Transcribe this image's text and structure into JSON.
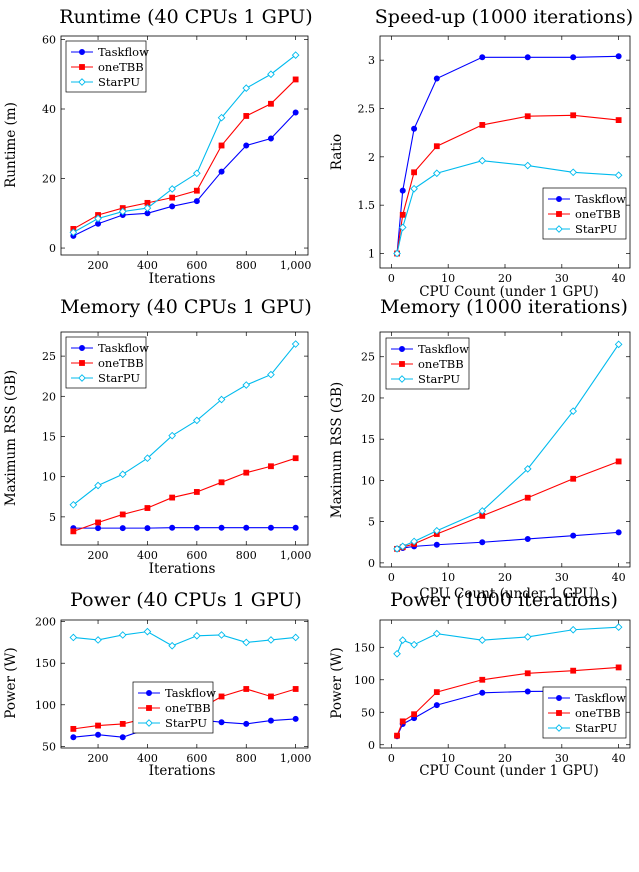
{
  "colors": {
    "taskflow": "#0000ff",
    "onetbb": "#ff0000",
    "starpu": "#00bbee"
  },
  "chart_data": [
    {
      "id": "runtime-iters",
      "type": "line",
      "title": "Runtime (40 CPUs 1 GPU)",
      "xlabel": "Iterations",
      "ylabel": "Runtime (m)",
      "xlim": [
        50,
        1050
      ],
      "ylim": [
        -2,
        61
      ],
      "xticks": [
        200,
        400,
        600,
        800,
        1000
      ],
      "xtick_labels": [
        "200",
        "400",
        "600",
        "800",
        "1,000"
      ],
      "yticks": [
        0,
        20,
        40,
        60
      ],
      "ytick_labels": [
        "0",
        "20",
        "40",
        "60"
      ],
      "legend": "top-left",
      "x": [
        100,
        200,
        300,
        400,
        500,
        600,
        700,
        800,
        900,
        1000
      ],
      "series": [
        {
          "name": "Taskflow",
          "values": [
            3.5,
            7,
            9.5,
            10,
            12,
            13.5,
            22,
            29.5,
            31.5,
            39
          ],
          "marker": "circle"
        },
        {
          "name": "oneTBB",
          "values": [
            5.5,
            9.5,
            11.5,
            13,
            14.5,
            16.5,
            29.5,
            38,
            41.5,
            48.5
          ],
          "marker": "square"
        },
        {
          "name": "StarPU",
          "values": [
            4.5,
            8.5,
            10.5,
            11.5,
            17,
            21.5,
            37.5,
            46,
            50,
            55.5
          ],
          "marker": "diamond"
        }
      ]
    },
    {
      "id": "speedup-cpus",
      "type": "line",
      "title": "Speed-up (1000 iterations)",
      "xlabel": "CPU Count (under 1 GPU)",
      "ylabel": "Ratio",
      "xlim": [
        -2,
        42
      ],
      "ylim": [
        0.85,
        3.25
      ],
      "xticks": [
        0,
        10,
        20,
        30,
        40
      ],
      "xtick_labels": [
        "0",
        "10",
        "20",
        "30",
        "40"
      ],
      "yticks": [
        1,
        1.5,
        2,
        2.5,
        3
      ],
      "ytick_labels": [
        "1",
        "1.5",
        "2",
        "2.5",
        "3"
      ],
      "legend": "bottom-right",
      "x": [
        1,
        2,
        4,
        8,
        16,
        24,
        32,
        40
      ],
      "series": [
        {
          "name": "Taskflow",
          "values": [
            1,
            1.65,
            2.29,
            2.81,
            3.03,
            3.03,
            3.03,
            3.04
          ],
          "marker": "circle"
        },
        {
          "name": "oneTBB",
          "values": [
            1,
            1.4,
            1.84,
            2.11,
            2.33,
            2.42,
            2.43,
            2.38
          ],
          "marker": "square"
        },
        {
          "name": "StarPU",
          "values": [
            1,
            1.27,
            1.67,
            1.83,
            1.96,
            1.91,
            1.84,
            1.81
          ],
          "marker": "diamond"
        }
      ]
    },
    {
      "id": "memory-iters",
      "type": "line",
      "title": "Memory (40 CPUs 1 GPU)",
      "xlabel": "Iterations",
      "ylabel": "Maximum RSS (GB)",
      "xlim": [
        50,
        1050
      ],
      "ylim": [
        1.5,
        28
      ],
      "xticks": [
        200,
        400,
        600,
        800,
        1000
      ],
      "xtick_labels": [
        "200",
        "400",
        "600",
        "800",
        "1,000"
      ],
      "yticks": [
        5,
        10,
        15,
        20,
        25
      ],
      "ytick_labels": [
        "5",
        "10",
        "15",
        "20",
        "25"
      ],
      "legend": "top-left",
      "x": [
        100,
        200,
        300,
        400,
        500,
        600,
        700,
        800,
        900,
        1000
      ],
      "series": [
        {
          "name": "Taskflow",
          "values": [
            3.6,
            3.6,
            3.6,
            3.6,
            3.65,
            3.65,
            3.65,
            3.65,
            3.65,
            3.65
          ],
          "marker": "circle"
        },
        {
          "name": "oneTBB",
          "values": [
            3.2,
            4.3,
            5.3,
            6.1,
            7.4,
            8.1,
            9.3,
            10.5,
            11.3,
            12.3
          ],
          "marker": "square"
        },
        {
          "name": "StarPU",
          "values": [
            6.5,
            8.9,
            10.3,
            12.3,
            15.1,
            17,
            19.6,
            21.4,
            22.7,
            26.5
          ],
          "marker": "diamond"
        }
      ]
    },
    {
      "id": "memory-cpus",
      "type": "line",
      "title": "Memory (1000 iterations)",
      "xlabel": "CPU Count (under 1 GPU)",
      "ylabel": "Maximum RSS (GB)",
      "xlim": [
        -2,
        42
      ],
      "ylim": [
        -0.5,
        28
      ],
      "xticks": [
        0,
        10,
        20,
        30,
        40
      ],
      "xtick_labels": [
        "0",
        "10",
        "20",
        "30",
        "40"
      ],
      "yticks": [
        0,
        5,
        10,
        15,
        20,
        25
      ],
      "ytick_labels": [
        "0",
        "5",
        "10",
        "15",
        "20",
        "25"
      ],
      "legend": "top-left",
      "x": [
        1,
        2,
        4,
        8,
        16,
        24,
        32,
        40
      ],
      "series": [
        {
          "name": "Taskflow",
          "values": [
            1.7,
            1.8,
            2,
            2.2,
            2.5,
            2.9,
            3.3,
            3.7
          ],
          "marker": "circle"
        },
        {
          "name": "oneTBB",
          "values": [
            1.7,
            1.9,
            2.3,
            3.5,
            5.7,
            7.9,
            10.2,
            12.3
          ],
          "marker": "square"
        },
        {
          "name": "StarPU",
          "values": [
            1.7,
            2,
            2.6,
            3.9,
            6.3,
            11.4,
            18.4,
            26.5
          ],
          "marker": "diamond"
        }
      ]
    },
    {
      "id": "power-iters",
      "type": "line",
      "title": "Power (40 CPUs 1 GPU)",
      "xlabel": "Iterations",
      "ylabel": "Power (W)",
      "xlim": [
        50,
        1050
      ],
      "ylim": [
        48,
        202
      ],
      "xticks": [
        200,
        400,
        600,
        800,
        1000
      ],
      "xtick_labels": [
        "200",
        "400",
        "600",
        "800",
        "1,000"
      ],
      "yticks": [
        50,
        100,
        150,
        200
      ],
      "ytick_labels": [
        "50",
        "100",
        "150",
        "200"
      ],
      "legend": "center",
      "x": [
        100,
        200,
        300,
        400,
        500,
        600,
        700,
        800,
        900,
        1000
      ],
      "series": [
        {
          "name": "Taskflow",
          "values": [
            61,
            64,
            61,
            71,
            80,
            82,
            79,
            77,
            81,
            83
          ],
          "marker": "circle"
        },
        {
          "name": "oneTBB",
          "values": [
            71,
            75,
            77,
            84,
            85,
            93,
            110,
            119,
            110,
            119
          ],
          "marker": "square"
        },
        {
          "name": "StarPU",
          "values": [
            181,
            178,
            184,
            188,
            171,
            183,
            184,
            175,
            178,
            181
          ],
          "marker": "diamond"
        }
      ]
    },
    {
      "id": "power-cpus",
      "type": "line",
      "title": "Power (1000 iterations)",
      "xlabel": "CPU Count (under 1 GPU)",
      "ylabel": "Power (W)",
      "xlim": [
        -2,
        42
      ],
      "ylim": [
        -5,
        192
      ],
      "xticks": [
        0,
        10,
        20,
        30,
        40
      ],
      "xtick_labels": [
        "0",
        "10",
        "20",
        "30",
        "40"
      ],
      "yticks": [
        0,
        50,
        100,
        150
      ],
      "ytick_labels": [
        "0",
        "50",
        "100",
        "150"
      ],
      "legend": "bottom-right",
      "x": [
        1,
        2,
        4,
        8,
        16,
        24,
        32,
        40
      ],
      "series": [
        {
          "name": "Taskflow",
          "values": [
            13,
            32,
            41,
            61,
            80,
            82,
            82.5,
            83
          ],
          "marker": "circle"
        },
        {
          "name": "oneTBB",
          "values": [
            14,
            36,
            47,
            81,
            100,
            110,
            114,
            119
          ],
          "marker": "square"
        },
        {
          "name": "StarPU",
          "values": [
            140,
            161,
            154,
            171,
            161,
            166,
            177,
            181
          ],
          "marker": "diamond"
        }
      ]
    }
  ]
}
